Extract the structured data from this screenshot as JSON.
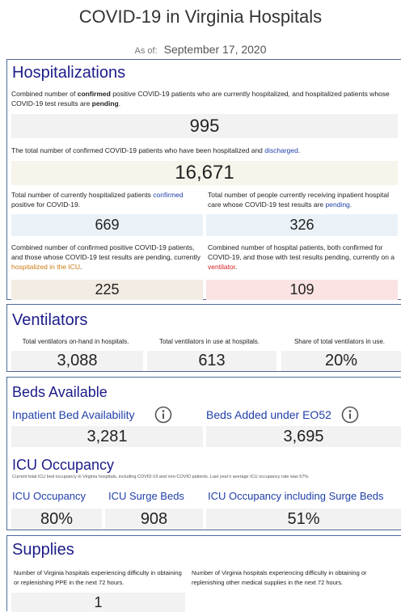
{
  "header": {
    "title": "COVID-19 in Virginia Hospitals",
    "as_of_label": "As of:",
    "date": "September 17, 2020"
  },
  "hospitalizations": {
    "title": "Hospitalizations",
    "current": {
      "description": [
        "Combined number of ",
        "confirmed",
        " positive COVID-19 patients who are currently hospitalized, and hospitalized patients whose COVID-19 test results are ",
        "pending",
        "."
      ],
      "value": "995"
    },
    "discharged": {
      "description": [
        "The total number of confirmed COVID-19 patients who have been hospitalized and ",
        "discharged",
        "."
      ],
      "value": "16,671"
    },
    "confirmed": {
      "description": [
        "Total number of currently hospitalized patients ",
        "confirmed",
        " positive for COVID-19."
      ],
      "value": "669"
    },
    "pending": {
      "description": [
        "Total number of people currently receiving inpatient hospital care whose COVID-19 test results are ",
        "pending",
        "."
      ],
      "value": "326"
    },
    "icu": {
      "description": [
        "Combined number of confirmed positive COVID-19 patients, and those whose COVID-19 test results are pending, currently ",
        "hospitalized in the ICU",
        "."
      ],
      "value": "225"
    },
    "ventilator": {
      "description": [
        "Combined number of hospital patients, both confirmed for COVID-19, and those with test results pending, currently on a ",
        "ventilator",
        "."
      ],
      "value": "109"
    }
  },
  "ventilators": {
    "title": "Ventilators",
    "items": [
      {
        "label": "Total ventilators on-hand in hospitals.",
        "value": "3,088"
      },
      {
        "label": "Total ventilators in use at hospitals.",
        "value": "613"
      },
      {
        "label": "Share of total ventilators in use.",
        "value": "20%"
      }
    ]
  },
  "beds": {
    "title": "Beds Available",
    "items": [
      {
        "label": "Inpatient Bed Availability",
        "value": "3,281"
      },
      {
        "label": "Beds Added under EO52",
        "value": "3,695"
      }
    ],
    "icu_title": "ICU Occupancy",
    "icu_note": "Current total ICU bed occupancy in Virginia hospitals, including COVID-19 and non-COVID patients. Last year's average ICU occupancy rate was 67%.",
    "icu_items": [
      {
        "label": "ICU Occupancy",
        "value": "80%"
      },
      {
        "label": "ICU Surge Beds",
        "value": "908"
      },
      {
        "label": "ICU Occupancy including Surge Beds",
        "value": "51%"
      }
    ]
  },
  "supplies": {
    "title": "Supplies",
    "items": [
      {
        "label": "Number of Virginia hospitals experiencing difficulty in obtaining or replenishing PPE in the next 72 hours.",
        "value": "1"
      },
      {
        "label": "Number of Virginia hospitals experiencing difficulty in obtaining or replenishing other medical supplies in the next 72 hours."
      }
    ]
  }
}
